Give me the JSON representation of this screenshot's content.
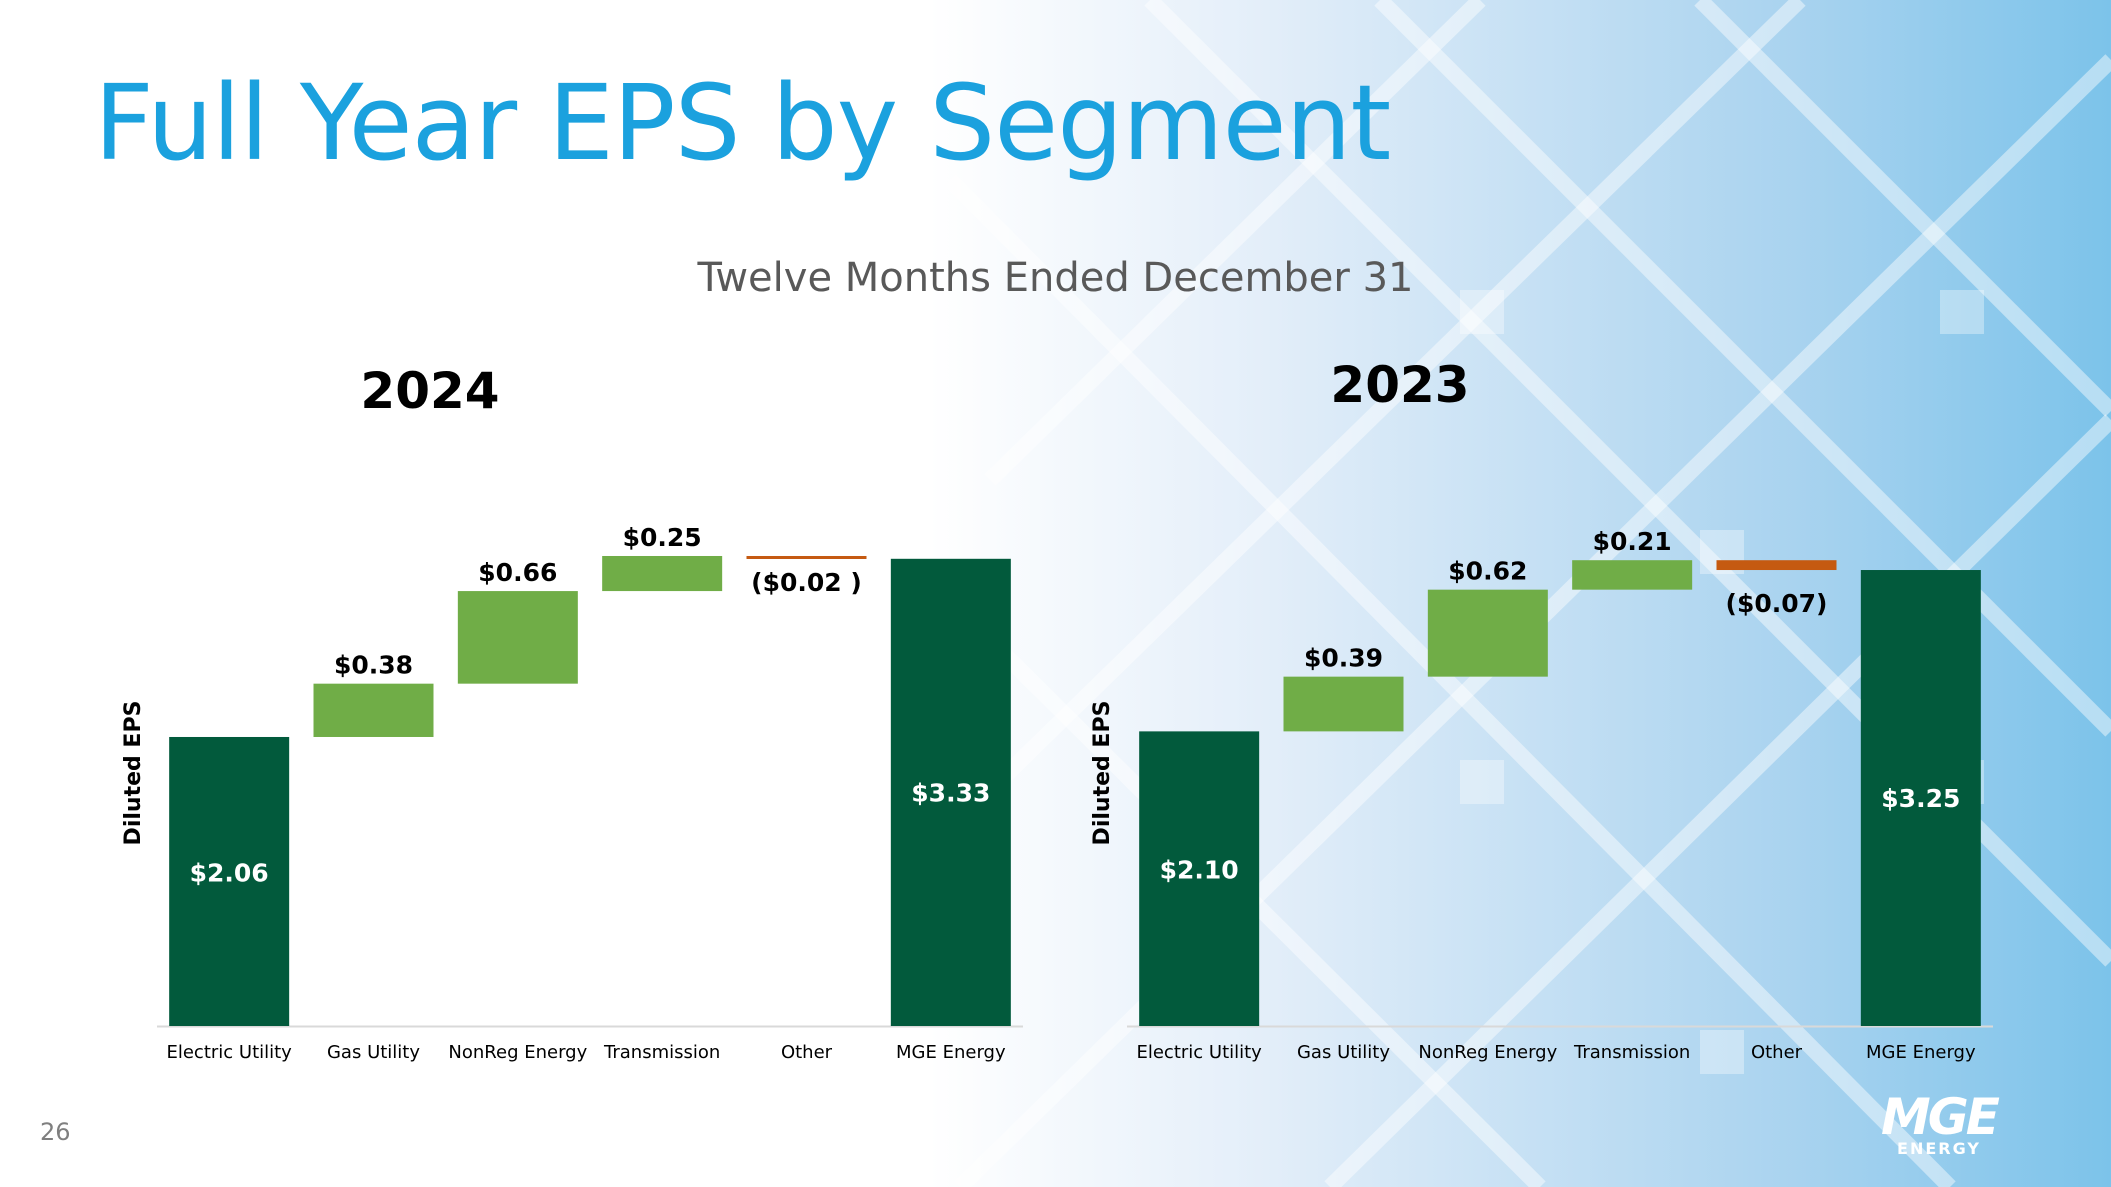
{
  "slide": {
    "title": "Full Year EPS by Segment",
    "subtitle": "Twelve Months Ended December 31",
    "slide_number": "26",
    "logo": {
      "mark": "MGE",
      "word": "ENERGY"
    }
  },
  "colors": {
    "title": "#1ba1de",
    "total_bar": "#025a3c",
    "increase_bar": "#70ad47",
    "decrease_bar": "#c55a11",
    "subtitle": "#595959"
  },
  "chart_data": [
    {
      "type": "waterfall",
      "title": "2024",
      "ylabel": "Diluted EPS",
      "xlabel": "",
      "ylim": [
        0,
        3.65
      ],
      "categories": [
        "Electric Utility",
        "Gas Utility",
        "NonReg Energy",
        "Transmission",
        "Other",
        "MGE Energy"
      ],
      "values": [
        2.06,
        0.38,
        0.66,
        0.25,
        -0.02,
        3.33
      ],
      "kinds": [
        "total",
        "increase",
        "increase",
        "increase",
        "decrease",
        "total"
      ],
      "labels": [
        "$2.06",
        "$0.38",
        "$0.66",
        "$0.25",
        "($0.02 )",
        "$3.33"
      ]
    },
    {
      "type": "waterfall",
      "title": "2023",
      "ylabel": "Diluted EPS",
      "xlabel": "",
      "ylim": [
        0,
        3.65
      ],
      "categories": [
        "Electric Utility",
        "Gas Utility",
        "NonReg Energy",
        "Transmission",
        "Other",
        "MGE Energy"
      ],
      "values": [
        2.1,
        0.39,
        0.62,
        0.21,
        -0.07,
        3.25
      ],
      "kinds": [
        "total",
        "increase",
        "increase",
        "increase",
        "decrease",
        "total"
      ],
      "labels": [
        "$2.10",
        "$0.39",
        "$0.62",
        "$0.21",
        "($0.07)",
        "$3.25"
      ]
    }
  ]
}
